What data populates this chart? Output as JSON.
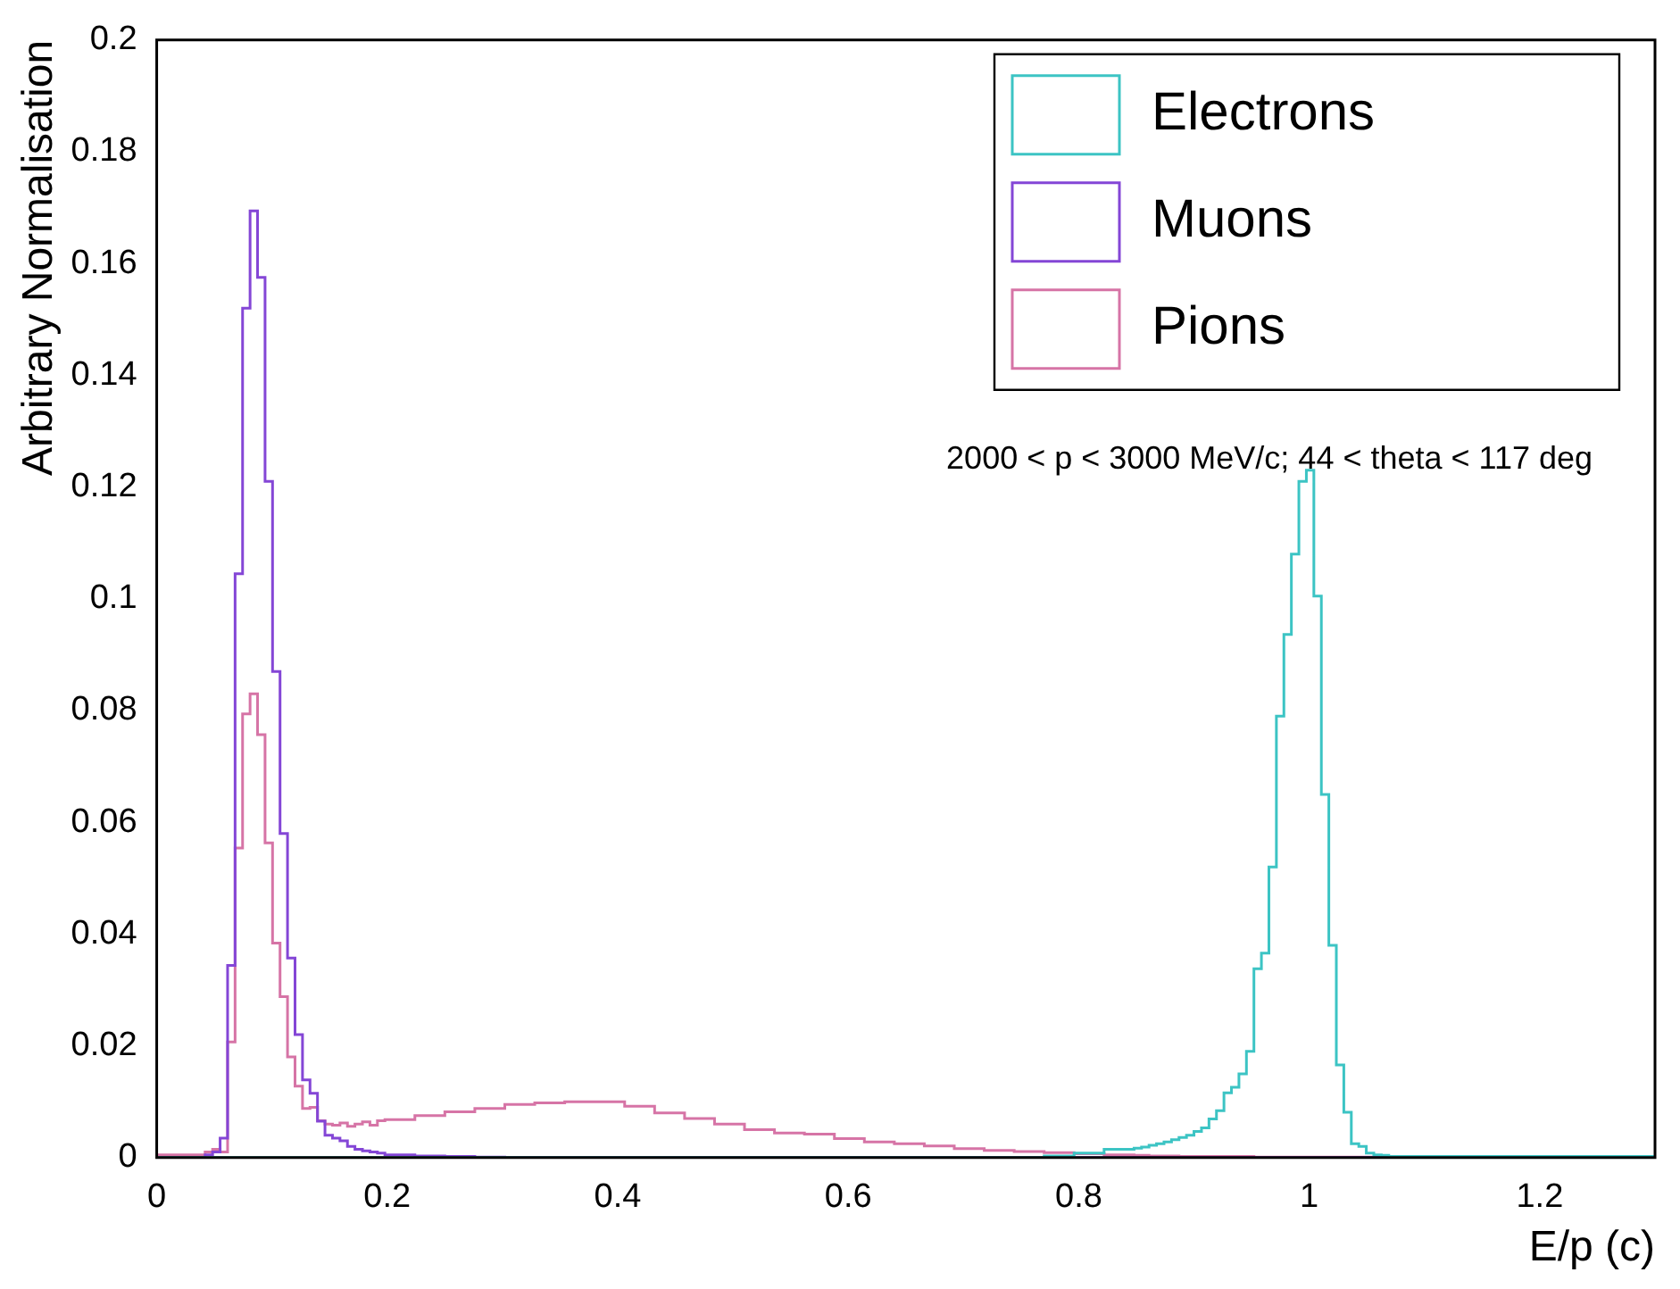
{
  "chart_data": {
    "type": "histogram",
    "xlabel": "E/p (c)",
    "ylabel": "Arbitrary Normalisation",
    "annotations": [
      "2000 < p < 3000 MeV/c; 44 < theta < 117 deg"
    ],
    "bins": [
      0,
      0.042,
      0.0485,
      0.055,
      0.0615,
      0.068,
      0.0745,
      0.081,
      0.0875,
      0.094,
      0.1005,
      0.107,
      0.1135,
      0.12,
      0.1265,
      0.133,
      0.1395,
      0.146,
      0.1525,
      0.159,
      0.1655,
      0.172,
      0.1785,
      0.185,
      0.1915,
      0.198,
      0.224,
      0.25,
      0.276,
      0.302,
      0.328,
      0.354,
      0.38,
      0.406,
      0.432,
      0.458,
      0.484,
      0.51,
      0.536,
      0.562,
      0.588,
      0.614,
      0.64,
      0.666,
      0.692,
      0.718,
      0.744,
      0.77,
      0.796,
      0.822,
      0.848,
      0.8545,
      0.861,
      0.8675,
      0.874,
      0.8805,
      0.887,
      0.8935,
      0.9,
      0.9065,
      0.913,
      0.9195,
      0.926,
      0.9325,
      0.939,
      0.9455,
      0.952,
      0.9585,
      0.965,
      0.9715,
      0.978,
      0.9845,
      0.991,
      0.9975,
      1.004,
      1.0105,
      1.017,
      1.0235,
      1.03,
      1.0365,
      1.043,
      1.0495,
      1.056,
      1.0625,
      1.069,
      1.3
    ],
    "series": [
      {
        "name": "Electrons",
        "color": "#3cc4c4",
        "values": [
          0,
          0,
          0,
          0,
          0,
          0,
          0,
          0,
          0,
          0,
          0,
          0,
          0,
          0,
          0,
          0,
          0,
          0,
          0,
          0,
          0,
          0,
          0,
          0,
          0,
          0,
          0,
          0,
          0,
          0,
          0,
          0,
          0,
          0,
          0,
          0,
          0,
          0,
          0,
          0,
          0,
          0,
          0,
          0,
          0,
          0,
          0,
          0.0003,
          0.0008,
          0.0015,
          0.0017,
          0.0019,
          0.0022,
          0.0025,
          0.0028,
          0.0032,
          0.0036,
          0.004,
          0.0047,
          0.0053,
          0.0069,
          0.0084,
          0.0116,
          0.0126,
          0.015,
          0.019,
          0.0338,
          0.0366,
          0.052,
          0.079,
          0.0936,
          0.108,
          0.121,
          0.123,
          0.1005,
          0.065,
          0.038,
          0.0166,
          0.0081,
          0.0025,
          0.002,
          0.0008,
          0.0005,
          0.0004,
          0.0002
        ]
      },
      {
        "name": "Muons",
        "color": "#8446d6",
        "values": [
          0,
          0.0005,
          0.001,
          0.0035,
          0.0344,
          0.1045,
          0.152,
          0.1694,
          0.1575,
          0.121,
          0.087,
          0.058,
          0.0357,
          0.022,
          0.0139,
          0.0115,
          0.0065,
          0.004,
          0.0035,
          0.003,
          0.002,
          0.0015,
          0.0012,
          0.001,
          0.0008,
          0.0005,
          0.0003,
          0.0002,
          0.0001,
          0,
          0,
          0,
          0,
          0,
          0,
          0,
          0,
          0,
          0,
          0,
          0,
          0,
          0,
          0,
          0,
          0,
          0,
          0,
          0,
          0,
          0,
          0,
          0,
          0,
          0,
          0,
          0,
          0,
          0,
          0,
          0,
          0,
          0,
          0,
          0,
          0,
          0,
          0,
          0,
          0,
          0,
          0,
          0,
          0,
          0,
          0,
          0,
          0,
          0,
          0,
          0,
          0,
          0,
          0,
          0
        ]
      },
      {
        "name": "Pions",
        "color": "#d674a6",
        "values": [
          0.0005,
          0.001,
          0.0015,
          0.001,
          0.0207,
          0.0554,
          0.0794,
          0.083,
          0.0757,
          0.0563,
          0.0384,
          0.0288,
          0.018,
          0.0128,
          0.0088,
          0.009,
          0.0066,
          0.006,
          0.0058,
          0.0062,
          0.0056,
          0.006,
          0.0064,
          0.0058,
          0.0066,
          0.0068,
          0.0075,
          0.0082,
          0.0088,
          0.0095,
          0.0098,
          0.01,
          0.01,
          0.0092,
          0.008,
          0.007,
          0.006,
          0.005,
          0.0044,
          0.0042,
          0.0034,
          0.0028,
          0.0025,
          0.0021,
          0.0016,
          0.0013,
          0.0011,
          0.0009,
          0.0007,
          0.0005,
          0.0004,
          0.0004,
          0.0003,
          0.0003,
          0.0003,
          0.0003,
          0.0002,
          0.0002,
          0.0002,
          0.0002,
          0.0002,
          0.0002,
          0.0002,
          0.0002,
          0.0002,
          0.0002,
          0.0001,
          0.0001,
          0.0001,
          0.0001,
          0.0001,
          0.0001,
          0.0001,
          0.0001,
          0.0001,
          0.0001,
          0.0001,
          0.0001,
          0.0001,
          0.0001,
          0.0001,
          0.0001,
          0.0001,
          0.0001,
          0.0001
        ]
      }
    ],
    "xlim": [
      0,
      1.3
    ],
    "xticks": [
      0,
      0.2,
      0.4,
      0.6,
      0.8,
      1,
      1.2
    ],
    "ylim": [
      0,
      0.2
    ],
    "yticks": [
      0,
      0.02,
      0.04,
      0.06,
      0.08,
      0.1,
      0.12,
      0.14,
      0.16,
      0.18,
      0.2
    ],
    "legend": "top right"
  }
}
